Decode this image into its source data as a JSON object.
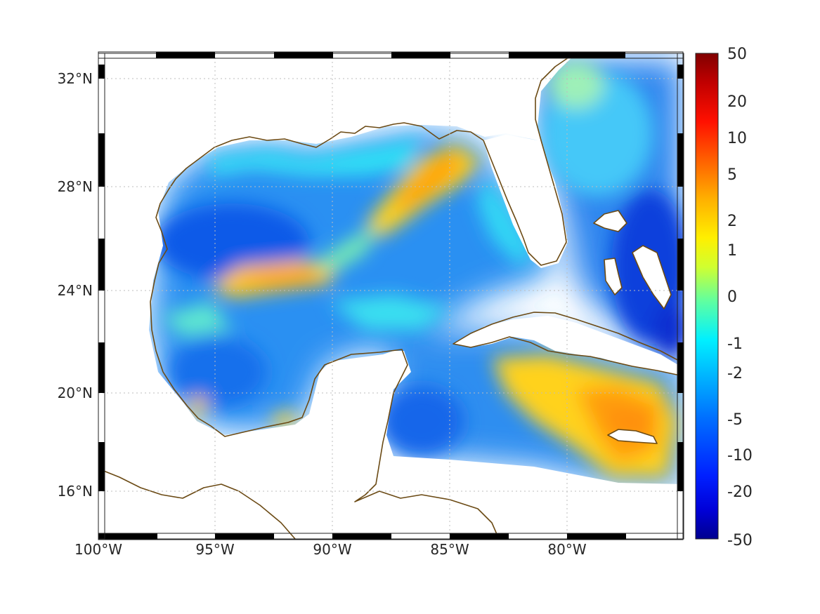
{
  "map": {
    "projection": "mercator",
    "lon_range": [
      -100,
      -75
    ],
    "lat_range": [
      14,
      33
    ],
    "longitude_ticks": [
      "100°W",
      "95°W",
      "90°W",
      "85°W",
      "80°W"
    ],
    "latitude_ticks": [
      "32°N",
      "28°N",
      "24°N",
      "20°N",
      "16°N"
    ],
    "coastline_color": "#6b4a14",
    "grid": true
  },
  "colorbar": {
    "labels": [
      "50",
      "20",
      "10",
      "5",
      "2",
      "1",
      "0",
      "-1",
      "-2",
      "-5",
      "-10",
      "-20",
      "-50"
    ],
    "colormap": "jet",
    "colors": [
      "#00008f",
      "#0000ff",
      "#0080ff",
      "#00ffff",
      "#80ff80",
      "#ffff00",
      "#ff8000",
      "#ff0000",
      "#800000"
    ]
  },
  "field_features": [
    {
      "name": "north-central-gulf-ridge",
      "level": "2 to 5"
    },
    {
      "name": "western-gulf-band",
      "level": "2 to 5"
    },
    {
      "name": "jamaica-region",
      "level": "2 to 5"
    },
    {
      "name": "western-gulf-basin",
      "level": "-5 to -10"
    },
    {
      "name": "bahamas-atlantic",
      "level": "-10"
    }
  ]
}
